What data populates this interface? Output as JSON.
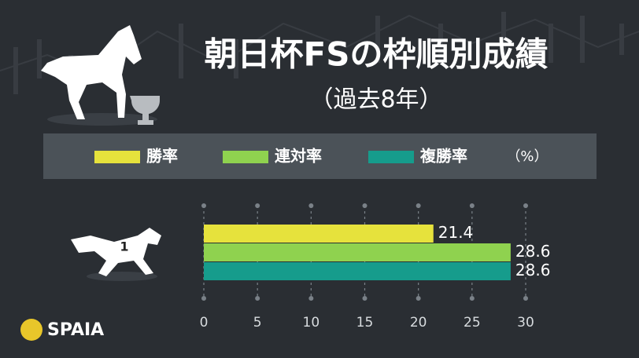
{
  "chart_data": {
    "type": "bar",
    "orientation": "horizontal",
    "title": "朝日杯FSの枠順別成績",
    "subtitle": "（過去8年）",
    "unit": "（%）",
    "categories": [
      "1"
    ],
    "series": [
      {
        "name": "勝率",
        "color": "#e6e23c",
        "values": [
          21.4
        ]
      },
      {
        "name": "連対率",
        "color": "#8fd24f",
        "values": [
          28.6
        ]
      },
      {
        "name": "複勝率",
        "color": "#169c8c",
        "values": [
          28.6
        ]
      }
    ],
    "xlim": [
      0,
      30
    ],
    "xticks": [
      0,
      5,
      10,
      15,
      20,
      25,
      30
    ],
    "grid": true,
    "brand": "SPAIA"
  }
}
